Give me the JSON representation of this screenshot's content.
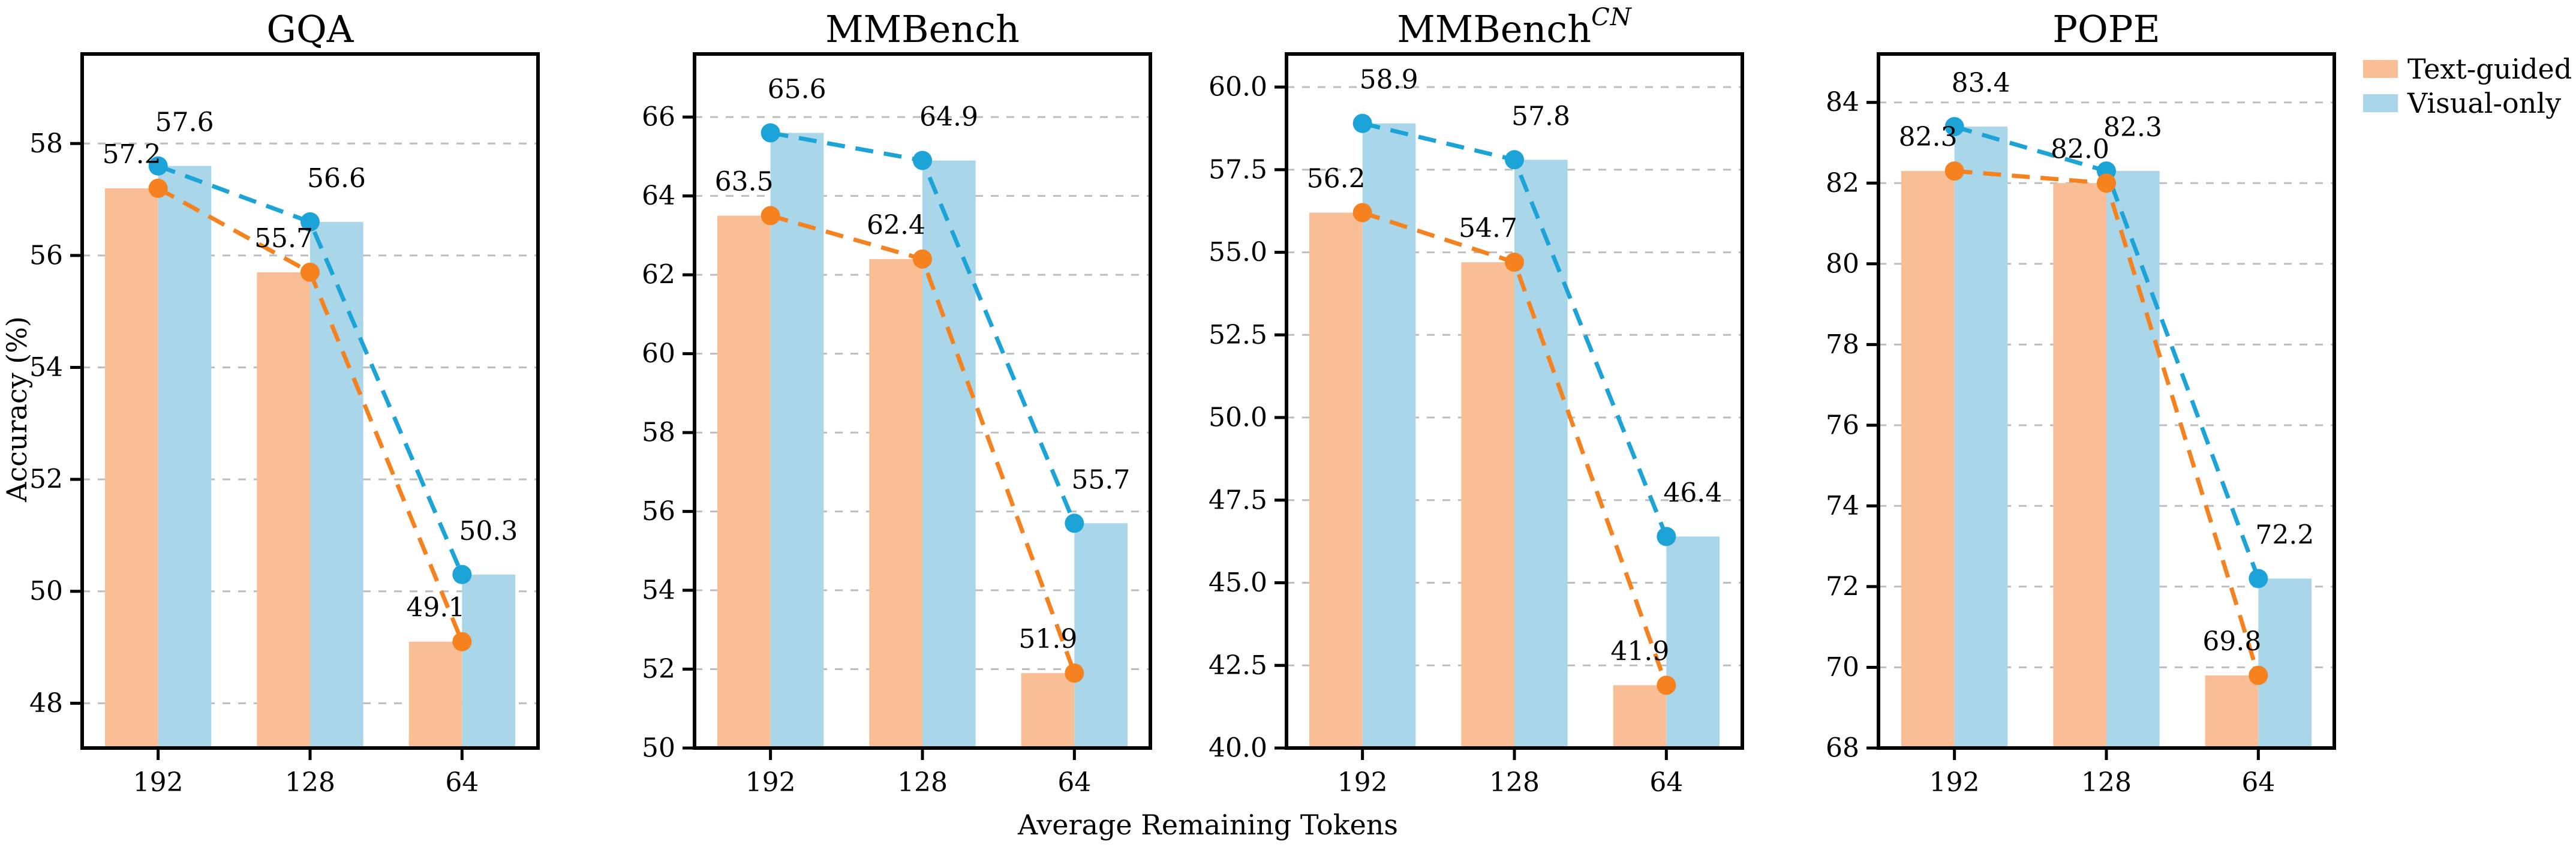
{
  "figure": {
    "xlabel": "Average Remaining Tokens",
    "ylabel": "Accuracy (%)",
    "background": "#ffffff"
  },
  "colors": {
    "text_guided_line": "#F5821F",
    "text_guided_bar": "#F9BE96",
    "visual_only_line": "#1CA3D7",
    "visual_only_bar": "#A9D6E8",
    "grid": "#BDBDBD",
    "axis": "#000000",
    "text": "#000000"
  },
  "legend": {
    "position": "upper right outside",
    "entries": [
      {
        "label": "Text-guided",
        "swatch": "text_guided_bar"
      },
      {
        "label": "Visual-only",
        "swatch": "visual_only_bar"
      }
    ]
  },
  "chart_data": [
    {
      "type": "bar",
      "overlay": "dashed-line-with-markers",
      "title": "GQA",
      "title_sup": "",
      "categories": [
        "192",
        "128",
        "64"
      ],
      "series": [
        {
          "name": "Text-guided",
          "values": [
            57.2,
            55.7,
            49.1
          ]
        },
        {
          "name": "Visual-only",
          "values": [
            57.6,
            56.6,
            50.3
          ]
        }
      ],
      "ylim": [
        47.2,
        59.6
      ],
      "yticks": [
        48,
        50,
        52,
        54,
        56,
        58
      ],
      "ytick_labels": [
        "48",
        "50",
        "52",
        "54",
        "56",
        "58"
      ],
      "grid": true
    },
    {
      "type": "bar",
      "overlay": "dashed-line-with-markers",
      "title": "MMBench",
      "title_sup": "",
      "categories": [
        "192",
        "128",
        "64"
      ],
      "series": [
        {
          "name": "Text-guided",
          "values": [
            63.5,
            62.4,
            51.9
          ]
        },
        {
          "name": "Visual-only",
          "values": [
            65.6,
            64.9,
            55.7
          ]
        }
      ],
      "ylim": [
        50,
        67.6
      ],
      "yticks": [
        50,
        52,
        54,
        56,
        58,
        60,
        62,
        64,
        66
      ],
      "ytick_labels": [
        "50",
        "52",
        "54",
        "56",
        "58",
        "60",
        "62",
        "64",
        "66"
      ],
      "grid": true
    },
    {
      "type": "bar",
      "overlay": "dashed-line-with-markers",
      "title": "MMBench",
      "title_sup": "CN",
      "categories": [
        "192",
        "128",
        "64"
      ],
      "series": [
        {
          "name": "Text-guided",
          "values": [
            56.2,
            54.7,
            41.9
          ]
        },
        {
          "name": "Visual-only",
          "values": [
            58.9,
            57.8,
            46.4
          ]
        }
      ],
      "ylim": [
        40,
        61.0
      ],
      "yticks": [
        40,
        42.5,
        45,
        47.5,
        50,
        52.5,
        55,
        57.5,
        60
      ],
      "ytick_labels": [
        "40.0",
        "42.5",
        "45.0",
        "47.5",
        "50.0",
        "52.5",
        "55.0",
        "57.5",
        "60.0"
      ],
      "grid": true
    },
    {
      "type": "bar",
      "overlay": "dashed-line-with-markers",
      "title": "POPE",
      "title_sup": "",
      "categories": [
        "192",
        "128",
        "64"
      ],
      "series": [
        {
          "name": "Text-guided",
          "values": [
            82.3,
            82.0,
            69.8
          ]
        },
        {
          "name": "Visual-only",
          "values": [
            83.4,
            82.3,
            72.2
          ]
        }
      ],
      "ylim": [
        68,
        85.2
      ],
      "yticks": [
        68,
        70,
        72,
        74,
        76,
        78,
        80,
        82,
        84
      ],
      "ytick_labels": [
        "68",
        "70",
        "72",
        "74",
        "76",
        "78",
        "80",
        "82",
        "84"
      ],
      "grid": true
    }
  ]
}
